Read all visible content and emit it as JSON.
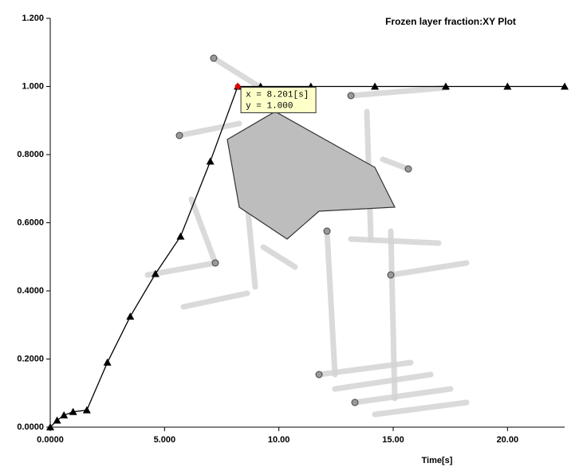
{
  "chart_data": {
    "type": "line",
    "title": "Frozen layer fraction:XY Plot",
    "x_label": "Time[s]",
    "x": [
      0,
      0.3,
      0.6,
      1.0,
      1.6,
      2.5,
      3.5,
      4.6,
      5.7,
      7.0,
      8.2,
      9.2,
      11.4,
      14.2,
      17.3,
      20.0,
      22.5
    ],
    "values": [
      0,
      0.02,
      0.035,
      0.045,
      0.05,
      0.19,
      0.325,
      0.45,
      0.56,
      0.78,
      1.0,
      1.0,
      1.0,
      1.0,
      1.0,
      1.0,
      1.0
    ],
    "color": "#000000",
    "xlim": [
      0,
      22.5
    ],
    "ylim": [
      0,
      1.2
    ],
    "xticks": [
      {
        "value": 0,
        "label": "0.0000"
      },
      {
        "value": 5,
        "label": "5.000"
      },
      {
        "value": 10,
        "label": "10.00"
      },
      {
        "value": 15,
        "label": "15.00"
      },
      {
        "value": 20,
        "label": "20.00"
      }
    ],
    "yticks": [
      {
        "value": 0,
        "label": "0.0000"
      },
      {
        "value": 0.2,
        "label": "0.2000"
      },
      {
        "value": 0.4,
        "label": "0.4000"
      },
      {
        "value": 0.6,
        "label": "0.6000"
      },
      {
        "value": 0.8,
        "label": "0.8000"
      },
      {
        "value": 1,
        "label": "1.000"
      },
      {
        "value": 1.2,
        "label": "1.200"
      }
    ],
    "tooltip": {
      "x": 8.2,
      "y": 1.0,
      "lines": [
        "x = 8.201[s]",
        "y = 1.000"
      ]
    }
  }
}
